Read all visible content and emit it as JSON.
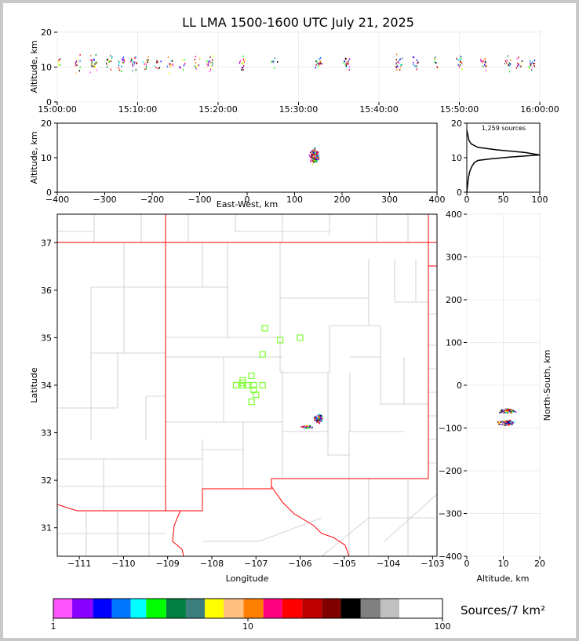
{
  "chart_data": [
    {
      "type": "scatter",
      "title": "LL LMA 1500-1600 UTC July 21, 2025",
      "xlabel": "",
      "ylabel": "Altitude, km",
      "xticks": [
        "15:00:00",
        "15:10:00",
        "15:20:00",
        "15:30:00",
        "15:40:00",
        "15:50:00",
        "16:00:00"
      ],
      "xlim": [
        0,
        60
      ],
      "ylim": [
        0,
        20
      ],
      "yticks": [
        "0",
        "10",
        "20"
      ],
      "time_clusters_min": [
        0,
        2.5,
        4.5,
        6.5,
        8,
        9.5,
        11,
        12.5,
        14,
        15.5,
        17.5,
        19,
        23,
        27,
        32.5,
        36,
        42.5,
        44.5,
        47,
        50,
        53,
        56,
        57.5,
        59
      ]
    },
    {
      "type": "scatter",
      "xlabel": "East-West, km",
      "ylabel": "Altitude, km",
      "xticks": [
        "−400",
        "−300",
        "−200",
        "−100",
        "0",
        "100",
        "200",
        "300",
        "400"
      ],
      "xlim": [
        -400,
        400
      ],
      "ylim": [
        0,
        20
      ],
      "yticks": [
        "0",
        "10",
        "20"
      ],
      "x_range": [
        105,
        165
      ],
      "z_range": [
        2,
        17
      ]
    },
    {
      "type": "line",
      "annotation": "1,259 sources",
      "xlim": [
        0,
        100
      ],
      "ylim": [
        0,
        20
      ],
      "xticks": [
        "0",
        "50",
        "100"
      ],
      "yticks": [
        "0",
        "10",
        "20"
      ],
      "x": [
        0,
        2,
        4,
        7,
        10,
        15,
        30,
        60,
        100,
        80,
        40,
        15,
        6,
        3,
        2,
        1,
        0
      ],
      "y": [
        0,
        4,
        6,
        7.5,
        8.5,
        9.2,
        9.6,
        10.2,
        10.8,
        11.5,
        12.3,
        13,
        14,
        15,
        16,
        17,
        18
      ]
    },
    {
      "type": "map",
      "xlabel": "Longitude",
      "ylabel": "Latitude",
      "xlim": [
        -111.5,
        -102.9
      ],
      "ylim": [
        30.4,
        37.6
      ],
      "xticks": [
        "−111",
        "−110",
        "−109",
        "−108",
        "−107",
        "−106",
        "−105",
        "−104",
        "−103"
      ],
      "yticks": [
        "31",
        "32",
        "33",
        "34",
        "35",
        "36",
        "37"
      ],
      "stations_lon_lat": [
        [
          -106.8,
          35.2
        ],
        [
          -106.45,
          34.95
        ],
        [
          -106.0,
          35.0
        ],
        [
          -106.85,
          34.65
        ],
        [
          -107.3,
          34.1
        ],
        [
          -107.45,
          34.0
        ],
        [
          -107.3,
          34.0
        ],
        [
          -107.2,
          34.0
        ],
        [
          -107.05,
          34.0
        ],
        [
          -106.85,
          34.0
        ],
        [
          -107.1,
          34.2
        ],
        [
          -107.05,
          33.9
        ],
        [
          -107.0,
          33.8
        ],
        [
          -107.1,
          33.65
        ],
        [
          -107.3,
          34.05
        ]
      ],
      "source_region": {
        "lon": [
          -106.15,
          -105.4
        ],
        "lat": [
          33.05,
          33.5
        ]
      }
    },
    {
      "type": "scatter",
      "xlabel": "Altitude, km",
      "ylabel": "North-South, km",
      "xlim": [
        0,
        20
      ],
      "ylim": [
        -400,
        400
      ],
      "xticks": [
        "0",
        "10",
        "20"
      ],
      "yticks": [
        "−400",
        "−300",
        "−200",
        "−100",
        "0",
        "100",
        "200",
        "300",
        "400"
      ],
      "z_range": [
        2,
        17
      ],
      "ns_range": [
        -95,
        -55
      ]
    },
    {
      "type": "heatmap",
      "title": "Sources/7 km²",
      "scale": "log",
      "range": [
        1,
        100
      ],
      "ticks": [
        "1",
        "10",
        "100"
      ],
      "colors": [
        "#ff55ff",
        "#8800ff",
        "#0000ff",
        "#0077ff",
        "#00ffff",
        "#00ff00",
        "#008040",
        "#3d7f7f",
        "#ffff00",
        "#ffc080",
        "#ff7f00",
        "#ff0080",
        "#ff0000",
        "#c00000",
        "#800000",
        "#000000",
        "#808080",
        "#c0c0c0",
        "#ffffff"
      ]
    }
  ]
}
